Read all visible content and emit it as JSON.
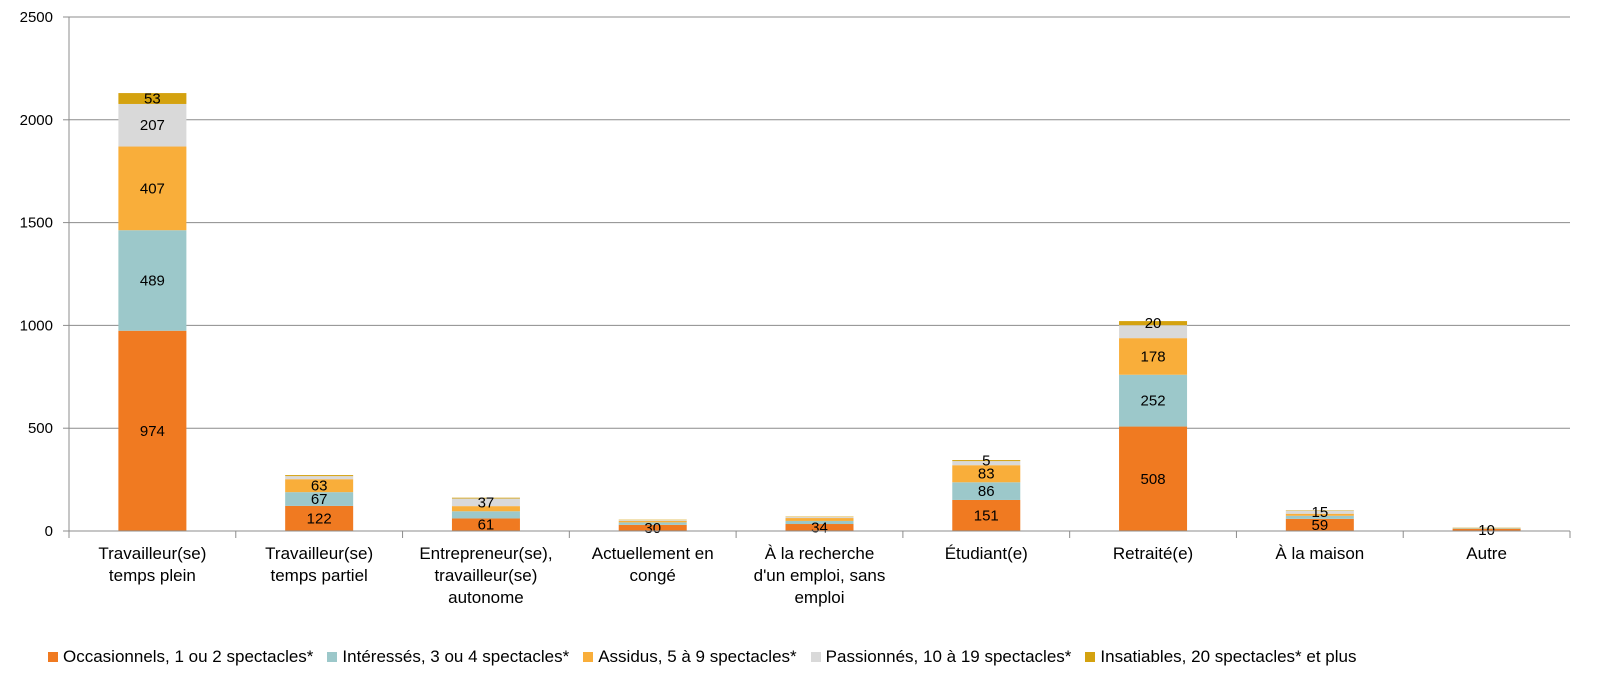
{
  "chart_data": {
    "type": "bar",
    "stacked": true,
    "categories": [
      "Travailleur(se) temps plein",
      "Travailleur(se) temps partiel",
      "Entrepreneur(se), travailleur(se) autonome",
      "Actuellement en congé",
      "À la recherche d'un emploi, sans emploi",
      "Étudiant(e)",
      "Retraité(e)",
      "À la maison",
      "Autre"
    ],
    "category_lines": [
      [
        "Travailleur(se)",
        "temps plein"
      ],
      [
        "Travailleur(se)",
        "temps partiel"
      ],
      [
        "Entrepreneur(se),",
        "travailleur(se)",
        "autonome"
      ],
      [
        "Actuellement en",
        "congé"
      ],
      [
        "À la recherche",
        "d'un emploi, sans",
        "emploi"
      ],
      [
        "Étudiant(e)"
      ],
      [
        "Retraité(e)"
      ],
      [
        "À la maison"
      ],
      [
        "Autre"
      ]
    ],
    "series": [
      {
        "name": "Occasionnels, 1 ou 2 spectacles*",
        "color": "#F07A21",
        "values": [
          974,
          122,
          61,
          30,
          34,
          151,
          508,
          59,
          10
        ],
        "labels": [
          "974",
          "122",
          "61",
          "30",
          "34",
          "151",
          "508",
          "59",
          "10"
        ]
      },
      {
        "name": "Intéressés, 3 ou 4 spectacles*",
        "color": "#9CC8CA",
        "values": [
          489,
          67,
          35,
          12,
          15,
          86,
          252,
          15,
          3
        ],
        "labels": [
          "489",
          "67",
          "",
          "",
          "",
          "86",
          "252",
          "",
          ""
        ]
      },
      {
        "name": "Assidus, 5 à 9 spectacles*",
        "color": "#F9AE3A",
        "values": [
          407,
          63,
          25,
          7,
          14,
          83,
          178,
          10,
          2
        ],
        "labels": [
          "407",
          "63",
          "",
          "",
          "",
          "83",
          "178",
          "",
          ""
        ]
      },
      {
        "name": "Passionnés, 10 à 19 spectacles*",
        "color": "#D9D9D9",
        "values": [
          207,
          15,
          37,
          4,
          5,
          20,
          63,
          15,
          1
        ],
        "labels": [
          "207",
          "",
          "37",
          "",
          "",
          "",
          "",
          "15",
          ""
        ]
      },
      {
        "name": "Insatiables, 20 spectacles* et plus",
        "color": "#D4A20F",
        "values": [
          53,
          5,
          4,
          2,
          2,
          5,
          20,
          2,
          1
        ],
        "labels": [
          "53",
          "",
          "",
          "",
          "",
          "5",
          "20",
          "",
          ""
        ]
      }
    ],
    "ylim": [
      0,
      2500
    ],
    "yticks": [
      0,
      500,
      1000,
      1500,
      2000,
      2500
    ],
    "grid": true,
    "legend_position": "bottom"
  }
}
